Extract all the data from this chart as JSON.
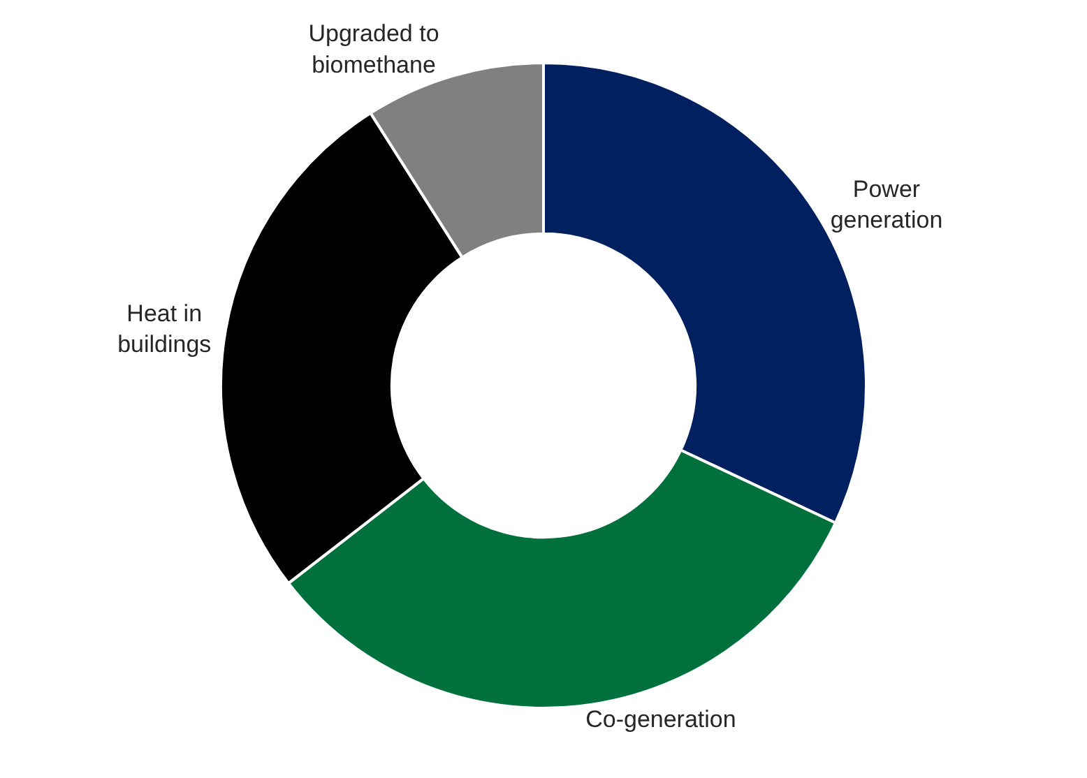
{
  "chart_data": {
    "type": "donut",
    "categories": [
      "Power\ngeneration",
      "Co-generation",
      "Heat in\nbuildings",
      "Upgraded to\nbiomethane"
    ],
    "values": [
      32,
      32.5,
      26.5,
      9
    ],
    "colors": [
      "#002060",
      "#00703c",
      "#000000",
      "#808080"
    ],
    "legend": false
  }
}
